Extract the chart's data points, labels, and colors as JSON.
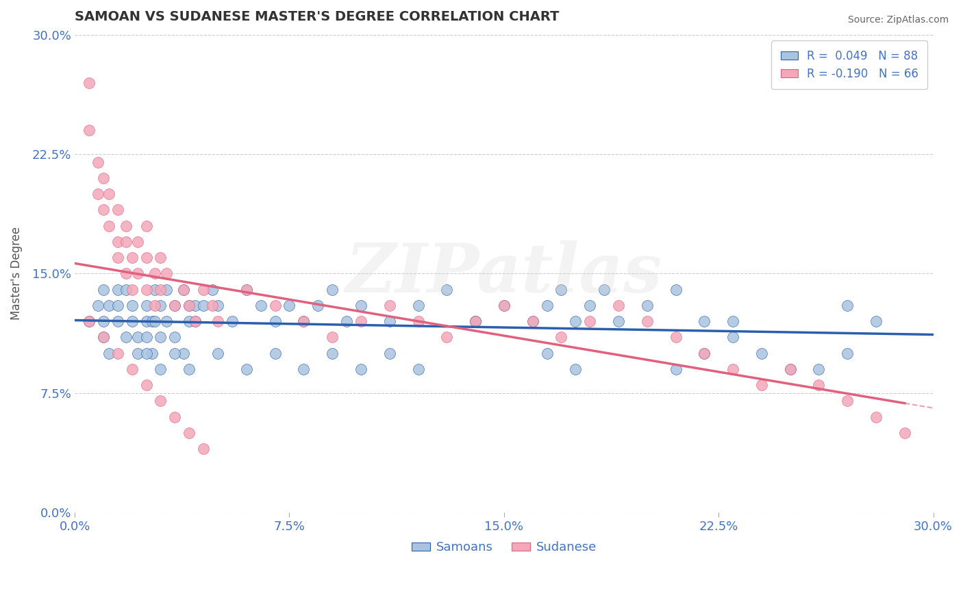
{
  "title": "SAMOAN VS SUDANESE MASTER'S DEGREE CORRELATION CHART",
  "source": "Source: ZipAtlas.com",
  "ylabel": "Master's Degree",
  "xlim": [
    0.0,
    0.3
  ],
  "ylim": [
    0.0,
    0.3
  ],
  "xtick_vals": [
    0.0,
    0.075,
    0.15,
    0.225,
    0.3
  ],
  "ytick_vals": [
    0.0,
    0.075,
    0.15,
    0.225,
    0.3
  ],
  "samoans_color": "#a8c4e0",
  "sudanese_color": "#f4a7b9",
  "samoans_line_color": "#2b5fad",
  "sudanese_line_color": "#e0607e",
  "R_samoans": 0.049,
  "N_samoans": 88,
  "R_sudanese": -0.19,
  "N_sudanese": 66,
  "title_color": "#333333",
  "tick_color": "#4472c4",
  "watermark": "ZIPatlas",
  "samoans_x": [
    0.005,
    0.008,
    0.01,
    0.01,
    0.01,
    0.012,
    0.012,
    0.015,
    0.015,
    0.015,
    0.018,
    0.018,
    0.02,
    0.02,
    0.022,
    0.022,
    0.025,
    0.025,
    0.025,
    0.027,
    0.027,
    0.028,
    0.028,
    0.03,
    0.03,
    0.032,
    0.032,
    0.035,
    0.035,
    0.038,
    0.038,
    0.04,
    0.04,
    0.042,
    0.042,
    0.045,
    0.048,
    0.05,
    0.055,
    0.06,
    0.065,
    0.07,
    0.075,
    0.08,
    0.085,
    0.09,
    0.095,
    0.1,
    0.11,
    0.12,
    0.13,
    0.14,
    0.15,
    0.16,
    0.165,
    0.17,
    0.175,
    0.18,
    0.185,
    0.19,
    0.2,
    0.21,
    0.22,
    0.23,
    0.24,
    0.25,
    0.26,
    0.27,
    0.28,
    0.21,
    0.22,
    0.23,
    0.175,
    0.165,
    0.14,
    0.12,
    0.11,
    0.1,
    0.09,
    0.08,
    0.07,
    0.06,
    0.05,
    0.04,
    0.035,
    0.03,
    0.025,
    0.27
  ],
  "samoans_y": [
    0.12,
    0.13,
    0.14,
    0.11,
    0.12,
    0.1,
    0.13,
    0.14,
    0.12,
    0.13,
    0.11,
    0.14,
    0.12,
    0.13,
    0.11,
    0.1,
    0.12,
    0.13,
    0.11,
    0.12,
    0.1,
    0.14,
    0.12,
    0.13,
    0.11,
    0.14,
    0.12,
    0.13,
    0.11,
    0.1,
    0.14,
    0.13,
    0.12,
    0.13,
    0.12,
    0.13,
    0.14,
    0.13,
    0.12,
    0.14,
    0.13,
    0.12,
    0.13,
    0.12,
    0.13,
    0.14,
    0.12,
    0.13,
    0.12,
    0.13,
    0.14,
    0.12,
    0.13,
    0.12,
    0.13,
    0.14,
    0.12,
    0.13,
    0.14,
    0.12,
    0.13,
    0.14,
    0.12,
    0.12,
    0.1,
    0.09,
    0.09,
    0.1,
    0.12,
    0.09,
    0.1,
    0.11,
    0.09,
    0.1,
    0.12,
    0.09,
    0.1,
    0.09,
    0.1,
    0.09,
    0.1,
    0.09,
    0.1,
    0.09,
    0.1,
    0.09,
    0.1,
    0.13
  ],
  "sudanese_x": [
    0.005,
    0.005,
    0.008,
    0.008,
    0.01,
    0.01,
    0.012,
    0.012,
    0.015,
    0.015,
    0.015,
    0.018,
    0.018,
    0.018,
    0.02,
    0.02,
    0.022,
    0.022,
    0.025,
    0.025,
    0.025,
    0.028,
    0.028,
    0.03,
    0.03,
    0.032,
    0.035,
    0.038,
    0.04,
    0.042,
    0.045,
    0.048,
    0.05,
    0.06,
    0.07,
    0.08,
    0.09,
    0.1,
    0.11,
    0.12,
    0.13,
    0.14,
    0.15,
    0.16,
    0.17,
    0.18,
    0.19,
    0.2,
    0.21,
    0.22,
    0.23,
    0.24,
    0.25,
    0.26,
    0.27,
    0.28,
    0.29,
    0.005,
    0.01,
    0.015,
    0.02,
    0.025,
    0.03,
    0.035,
    0.04,
    0.045
  ],
  "sudanese_y": [
    0.27,
    0.24,
    0.2,
    0.22,
    0.19,
    0.21,
    0.18,
    0.2,
    0.16,
    0.17,
    0.19,
    0.15,
    0.17,
    0.18,
    0.16,
    0.14,
    0.15,
    0.17,
    0.14,
    0.16,
    0.18,
    0.15,
    0.13,
    0.14,
    0.16,
    0.15,
    0.13,
    0.14,
    0.13,
    0.12,
    0.14,
    0.13,
    0.12,
    0.14,
    0.13,
    0.12,
    0.11,
    0.12,
    0.13,
    0.12,
    0.11,
    0.12,
    0.13,
    0.12,
    0.11,
    0.12,
    0.13,
    0.12,
    0.11,
    0.1,
    0.09,
    0.08,
    0.09,
    0.08,
    0.07,
    0.06,
    0.05,
    0.12,
    0.11,
    0.1,
    0.09,
    0.08,
    0.07,
    0.06,
    0.05,
    0.04
  ]
}
